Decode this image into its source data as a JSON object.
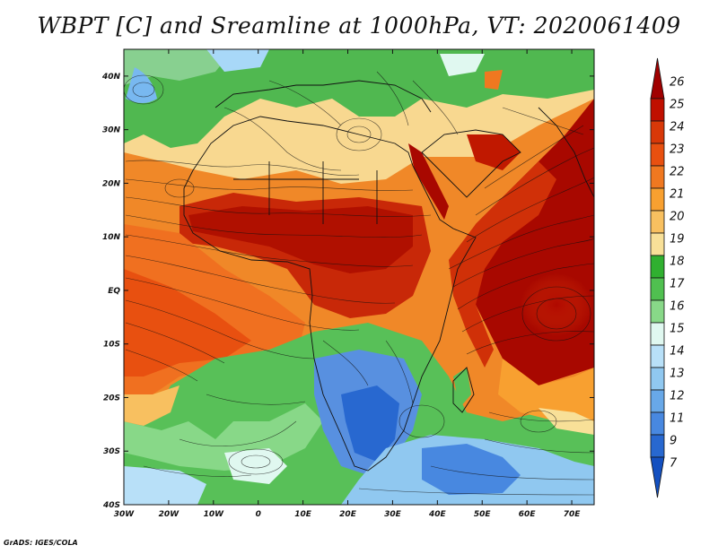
{
  "title": "WBPT [C] and Sreamline at 1000hPa, VT: 2020061409",
  "credit": "GrADS: IGES/COLA",
  "map": {
    "lon_range": [
      -30,
      75
    ],
    "lat_range": [
      -40,
      45
    ],
    "lon_ticks": [
      "30W",
      "20W",
      "10W",
      "0",
      "10E",
      "20E",
      "30E",
      "40E",
      "50E",
      "60E",
      "70E"
    ],
    "lat_ticks": [
      "40N",
      "30N",
      "20N",
      "10N",
      "EQ",
      "10S",
      "20S",
      "30S",
      "40S"
    ]
  },
  "colorbar": {
    "labels": [
      "26",
      "25",
      "24",
      "23",
      "22",
      "21",
      "20",
      "19",
      "18",
      "17",
      "16",
      "15",
      "14",
      "13",
      "12",
      "11",
      "9",
      "7"
    ],
    "colors": [
      "#a00000",
      "#c01000",
      "#d83808",
      "#e85010",
      "#f07820",
      "#f8a030",
      "#f8c060",
      "#f8e098",
      "#30b030",
      "#50c050",
      "#88d888",
      "#e0f8f0",
      "#b8e0f8",
      "#90c8f0",
      "#68a8e8",
      "#4888e0",
      "#2868d0",
      "#1450c0"
    ]
  }
}
